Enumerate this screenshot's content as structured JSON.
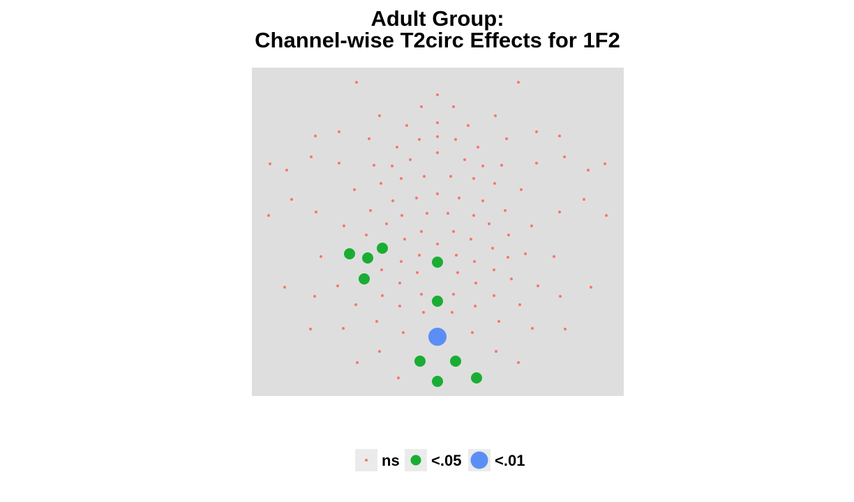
{
  "chart_data": {
    "type": "scatter",
    "title": "Adult Group:",
    "subtitle": "Channel-wise T2circ Effects for 1F2",
    "xlabel": "",
    "ylabel": "",
    "grid": false,
    "legend_position": "bottom",
    "colors": {
      "panel": "#dedede",
      "legend_key_bg": "#ebebeb",
      "ns": "#f8766d",
      "p05": "#1aad33",
      "p01": "#5b8ef5"
    },
    "series": [
      {
        "name": "ns",
        "points": [
          [
            511,
            118
          ],
          [
            743,
            118
          ],
          [
            627,
            136
          ],
          [
            604,
            153
          ],
          [
            650,
            153
          ],
          [
            544,
            166
          ],
          [
            710,
            166
          ],
          [
            583,
            180
          ],
          [
            627,
            176
          ],
          [
            671,
            180
          ],
          [
            452,
            195
          ],
          [
            486,
            189
          ],
          [
            529,
            199
          ],
          [
            601,
            200
          ],
          [
            627,
            196
          ],
          [
            653,
            200
          ],
          [
            726,
            199
          ],
          [
            769,
            189
          ],
          [
            802,
            195
          ],
          [
            569,
            211
          ],
          [
            627,
            219
          ],
          [
            685,
            211
          ],
          [
            446,
            225
          ],
          [
            809,
            225
          ],
          [
            588,
            229
          ],
          [
            666,
            229
          ],
          [
            387,
            235
          ],
          [
            867,
            235
          ],
          [
            411,
            244
          ],
          [
            486,
            234
          ],
          [
            536,
            237
          ],
          [
            562,
            238
          ],
          [
            692,
            238
          ],
          [
            719,
            237
          ],
          [
            769,
            234
          ],
          [
            843,
            244
          ],
          [
            575,
            256
          ],
          [
            608,
            253
          ],
          [
            646,
            253
          ],
          [
            679,
            256
          ],
          [
            546,
            263
          ],
          [
            709,
            263
          ],
          [
            508,
            272
          ],
          [
            747,
            272
          ],
          [
            418,
            286
          ],
          [
            563,
            288
          ],
          [
            597,
            284
          ],
          [
            627,
            278
          ],
          [
            658,
            284
          ],
          [
            692,
            288
          ],
          [
            837,
            286
          ],
          [
            385,
            309
          ],
          [
            453,
            304
          ],
          [
            531,
            302
          ],
          [
            576,
            309
          ],
          [
            612,
            306
          ],
          [
            642,
            306
          ],
          [
            679,
            309
          ],
          [
            724,
            302
          ],
          [
            802,
            304
          ],
          [
            869,
            309
          ],
          [
            493,
            324
          ],
          [
            554,
            321
          ],
          [
            701,
            321
          ],
          [
            762,
            324
          ],
          [
            525,
            337
          ],
          [
            580,
            343
          ],
          [
            604,
            332
          ],
          [
            650,
            332
          ],
          [
            675,
            343
          ],
          [
            729,
            337
          ],
          [
            627,
            350
          ],
          [
            706,
            356
          ],
          [
            460,
            368
          ],
          [
            601,
            366
          ],
          [
            575,
            375
          ],
          [
            654,
            366
          ],
          [
            680,
            375
          ],
          [
            728,
            369
          ],
          [
            753,
            364
          ],
          [
            794,
            368
          ],
          [
            547,
            387
          ],
          [
            598,
            391
          ],
          [
            656,
            391
          ],
          [
            708,
            387
          ],
          [
            733,
            400
          ],
          [
            484,
            410
          ],
          [
            573,
            406
          ],
          [
            682,
            406
          ],
          [
            408,
            412
          ],
          [
            771,
            410
          ],
          [
            847,
            412
          ],
          [
            451,
            425
          ],
          [
            548,
            424
          ],
          [
            604,
            422
          ],
          [
            650,
            422
          ],
          [
            708,
            424
          ],
          [
            803,
            425
          ],
          [
            510,
            437
          ],
          [
            573,
            439
          ],
          [
            681,
            439
          ],
          [
            745,
            437
          ],
          [
            607,
            448
          ],
          [
            648,
            448
          ],
          [
            540,
            461
          ],
          [
            715,
            461
          ],
          [
            445,
            472
          ],
          [
            492,
            471
          ],
          [
            578,
            477
          ],
          [
            677,
            477
          ],
          [
            763,
            471
          ],
          [
            810,
            472
          ],
          [
            544,
            504
          ],
          [
            711,
            504
          ],
          [
            512,
            520
          ],
          [
            743,
            520
          ],
          [
            571,
            542
          ]
        ]
      },
      {
        "name": "<.05",
        "points": [
          [
            548,
            356
          ],
          [
            501,
            364
          ],
          [
            527,
            370
          ],
          [
            627,
            376
          ],
          [
            522,
            400
          ],
          [
            627,
            432
          ],
          [
            602,
            518
          ],
          [
            653,
            518
          ],
          [
            683,
            542
          ],
          [
            627,
            547
          ]
        ]
      },
      {
        "name": "<.01",
        "points": [
          [
            627,
            483
          ]
        ]
      }
    ],
    "legend": [
      {
        "label": "ns"
      },
      {
        "label": "<.05"
      },
      {
        "label": "<.01"
      }
    ]
  }
}
